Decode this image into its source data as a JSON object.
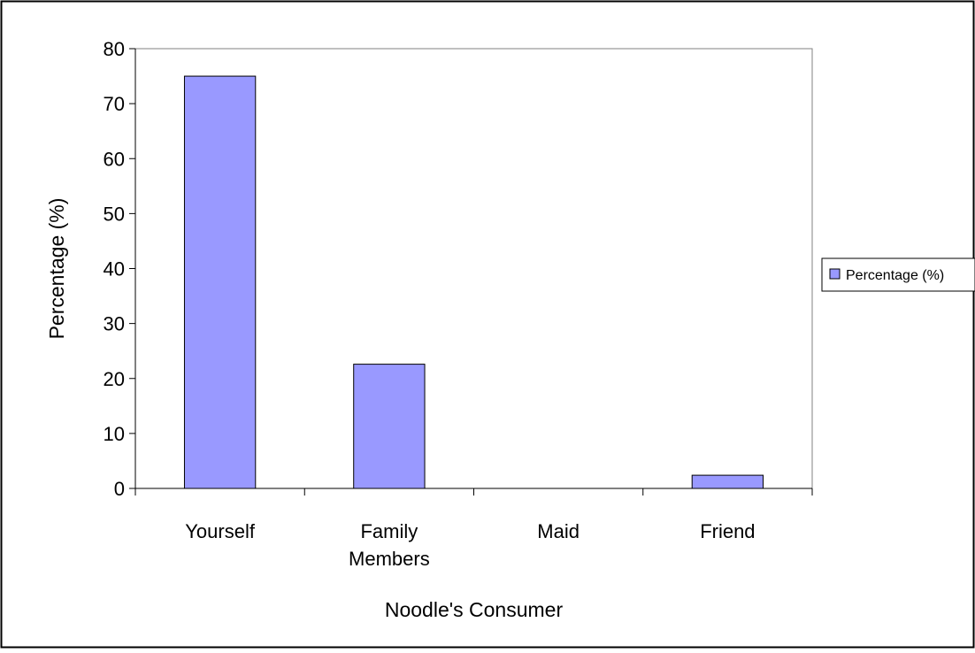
{
  "chart_data": {
    "type": "bar",
    "title": "",
    "xlabel": "Noodle's Consumer",
    "ylabel": "Percentage (%)",
    "categories": [
      [
        "Yourself"
      ],
      [
        "Family",
        "Members"
      ],
      [
        "Maid"
      ],
      [
        "Friend"
      ]
    ],
    "series": [
      {
        "name": "Percentage (%)",
        "values": [
          75,
          22.6,
          0,
          2.4
        ],
        "color": "#9999ff"
      }
    ],
    "ylim": [
      0,
      80
    ],
    "yticks": [
      0,
      10,
      20,
      30,
      40,
      50,
      60,
      70,
      80
    ],
    "grid": false,
    "legend": "right"
  }
}
